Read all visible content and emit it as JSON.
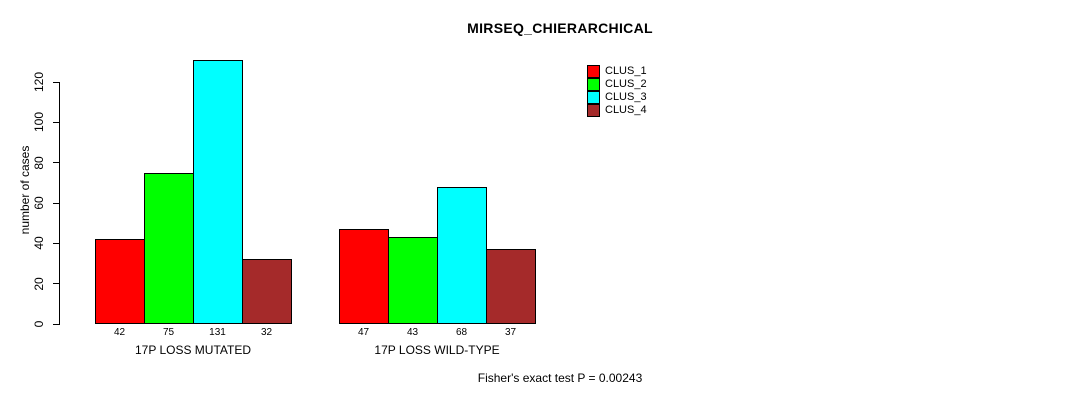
{
  "chart_data": {
    "type": "bar",
    "title": "MIRSEQ_CHIERARCHICAL",
    "ylabel": "number of cases",
    "xlabel": "",
    "ylim": [
      0,
      120
    ],
    "yticks": [
      0,
      20,
      40,
      60,
      80,
      100,
      120
    ],
    "categories": [
      "17P LOSS MUTATED",
      "17P LOSS WILD-TYPE"
    ],
    "series": [
      {
        "name": "CLUS_1",
        "color": "#FF0000",
        "values": [
          42,
          47
        ]
      },
      {
        "name": "CLUS_2",
        "color": "#00FF00",
        "values": [
          75,
          43
        ]
      },
      {
        "name": "CLUS_3",
        "color": "#00FFFF",
        "values": [
          131,
          68
        ]
      },
      {
        "name": "CLUS_4",
        "color": "#A52A2A",
        "values": [
          32,
          37
        ]
      }
    ],
    "grid": false,
    "legend_position": "top-right",
    "annotation": "Fisher's exact test P = 0.00243"
  }
}
